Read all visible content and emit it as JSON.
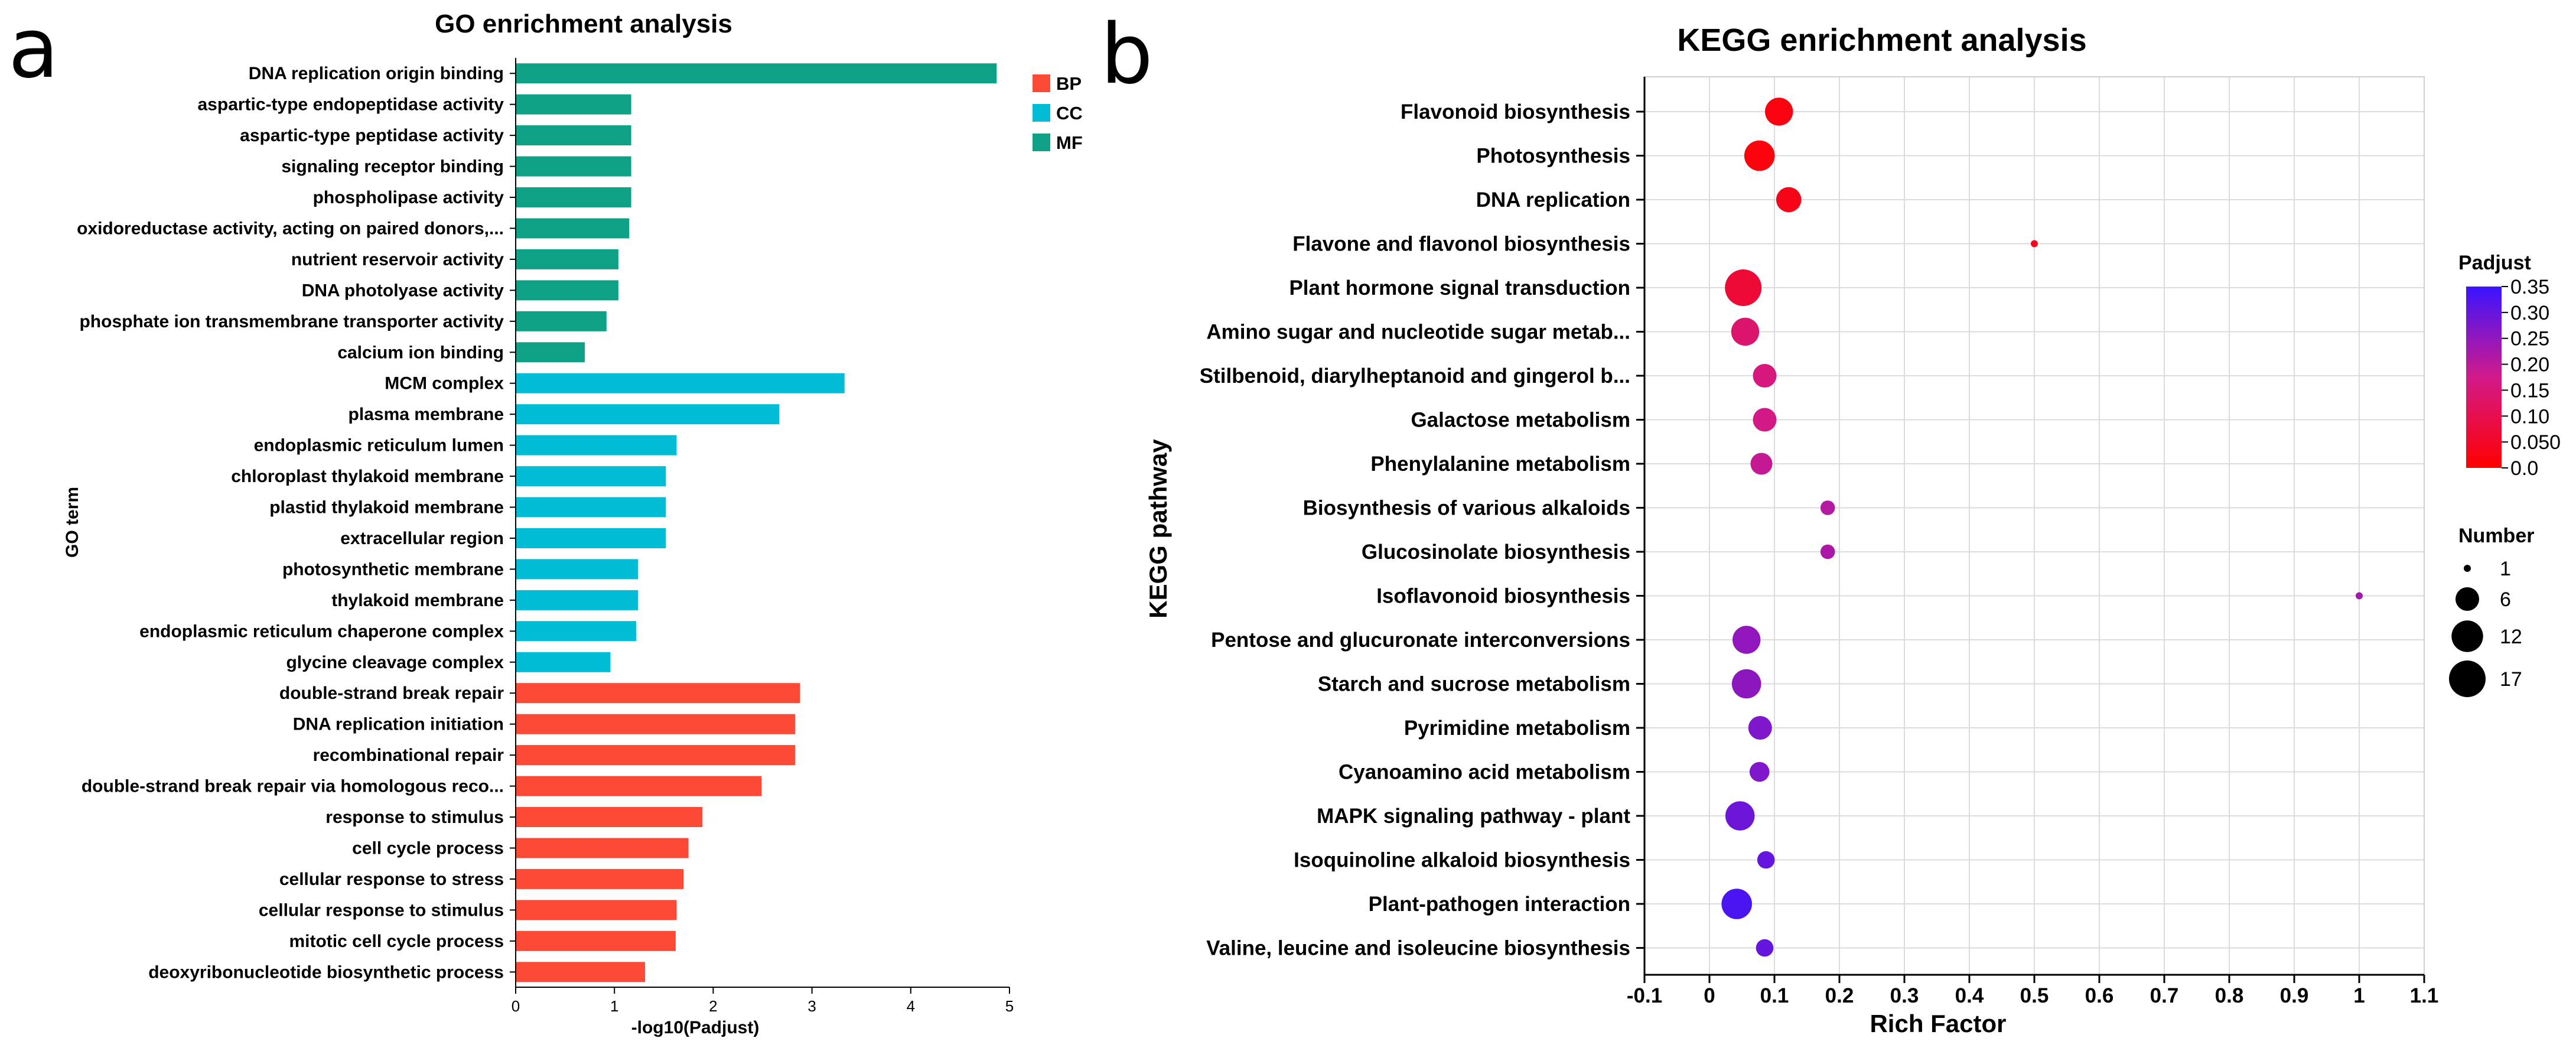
{
  "panels": {
    "a": "a",
    "b": "b"
  },
  "chart_data": [
    {
      "type": "bar",
      "orientation": "horizontal",
      "title": "GO enrichment analysis",
      "xlabel": "-log10(Padjust)",
      "ylabel": "GO term",
      "xlim": [
        0,
        5
      ],
      "xticks": [
        "0",
        "1",
        "2",
        "3",
        "4",
        "5"
      ],
      "categories": [
        "DNA replication origin binding",
        "aspartic-type endopeptidase activity",
        "aspartic-type peptidase activity",
        "signaling receptor binding",
        "phospholipase activity",
        "oxidoreductase activity, acting on paired donors,...",
        "nutrient reservoir activity",
        "DNA photolyase activity",
        "phosphate ion transmembrane transporter activity",
        "calcium ion binding",
        "MCM complex",
        "plasma membrane",
        "endoplasmic reticulum lumen",
        "chloroplast thylakoid membrane",
        "plastid thylakoid membrane",
        "extracellular region",
        "photosynthetic membrane",
        "thylakoid membrane",
        "endoplasmic reticulum chaperone complex",
        "glycine cleavage complex",
        "double-strand break repair",
        "DNA replication initiation",
        "recombinational repair",
        "double-strand break repair via homologous reco...",
        "response to stimulus",
        "cell cycle process",
        "cellular response to stress",
        "cellular response to stimulus",
        "mitotic cell cycle process",
        "deoxyribonucleotide biosynthetic process"
      ],
      "values": [
        4.87,
        1.17,
        1.17,
        1.17,
        1.17,
        1.15,
        1.04,
        1.04,
        0.92,
        0.7,
        3.33,
        2.67,
        1.63,
        1.52,
        1.52,
        1.52,
        1.24,
        1.24,
        1.22,
        0.96,
        2.88,
        2.83,
        2.83,
        2.49,
        1.89,
        1.75,
        1.7,
        1.63,
        1.62,
        1.31
      ],
      "groups": [
        "MF",
        "MF",
        "MF",
        "MF",
        "MF",
        "MF",
        "MF",
        "MF",
        "MF",
        "MF",
        "CC",
        "CC",
        "CC",
        "CC",
        "CC",
        "CC",
        "CC",
        "CC",
        "CC",
        "CC",
        "BP",
        "BP",
        "BP",
        "BP",
        "BP",
        "BP",
        "BP",
        "BP",
        "BP",
        "BP"
      ],
      "legend": [
        {
          "name": "BP",
          "color": "#fc4a36"
        },
        {
          "name": "CC",
          "color": "#00bcd5"
        },
        {
          "name": "MF",
          "color": "#0fa185"
        }
      ],
      "legend_position": "top-right"
    },
    {
      "type": "scatter",
      "title": "KEGG enrichment analysis",
      "xlabel": "Rich Factor",
      "ylabel": "KEGG pathway",
      "xlim": [
        -0.1,
        1.1
      ],
      "xticks": [
        "-0.1",
        "0",
        "0.1",
        "0.2",
        "0.3",
        "0.4",
        "0.5",
        "0.6",
        "0.7",
        "0.8",
        "0.9",
        "1",
        "1.1"
      ],
      "grid": true,
      "categories": [
        "Flavonoid biosynthesis",
        "Photosynthesis",
        "DNA replication",
        "Flavone and flavonol biosynthesis",
        "Plant hormone signal transduction",
        "Amino sugar and nucleotide sugar metab...",
        "Stilbenoid, diarylheptanoid and gingerol b...",
        "Galactose metabolism",
        "Phenylalanine metabolism",
        "Biosynthesis of various alkaloids",
        "Glucosinolate biosynthesis",
        "Isoflavonoid biosynthesis",
        "Pentose and glucuronate interconversions",
        "Starch and sucrose metabolism",
        "Pyrimidine metabolism",
        "Cyanoamino acid metabolism",
        "MAPK signaling pathway - plant",
        "Isoquinoline alkaloid biosynthesis",
        "Plant-pathogen interaction",
        "Valine, leucine and isoleucine biosynthesis"
      ],
      "rich_factor": [
        0.107,
        0.077,
        0.122,
        0.5,
        0.052,
        0.055,
        0.085,
        0.085,
        0.08,
        0.182,
        0.182,
        1.0,
        0.057,
        0.057,
        0.078,
        0.077,
        0.047,
        0.087,
        0.042,
        0.085
      ],
      "number": [
        9,
        11,
        7,
        1,
        17,
        9,
        6,
        6,
        5,
        2,
        2,
        1,
        9,
        10,
        6,
        4,
        10,
        3,
        11,
        3
      ],
      "padjust": [
        0.02,
        0.015,
        0.03,
        0.04,
        0.07,
        0.14,
        0.16,
        0.17,
        0.19,
        0.21,
        0.22,
        0.23,
        0.25,
        0.255,
        0.27,
        0.27,
        0.29,
        0.3,
        0.33,
        0.3
      ],
      "colorbar": {
        "title": "Padjust",
        "min": 0.0,
        "max": 0.35,
        "low_color": "#ff0000",
        "high_color": "#3a14ff",
        "ticks": [
          "0.35",
          "0.30",
          "0.25",
          "0.20",
          "0.15",
          "0.10",
          "0.050",
          "0.0"
        ]
      },
      "size_legend": {
        "title": "Number",
        "entries": [
          1,
          6,
          12,
          17
        ],
        "labels": [
          "1",
          "6",
          "12",
          "17"
        ]
      }
    }
  ]
}
